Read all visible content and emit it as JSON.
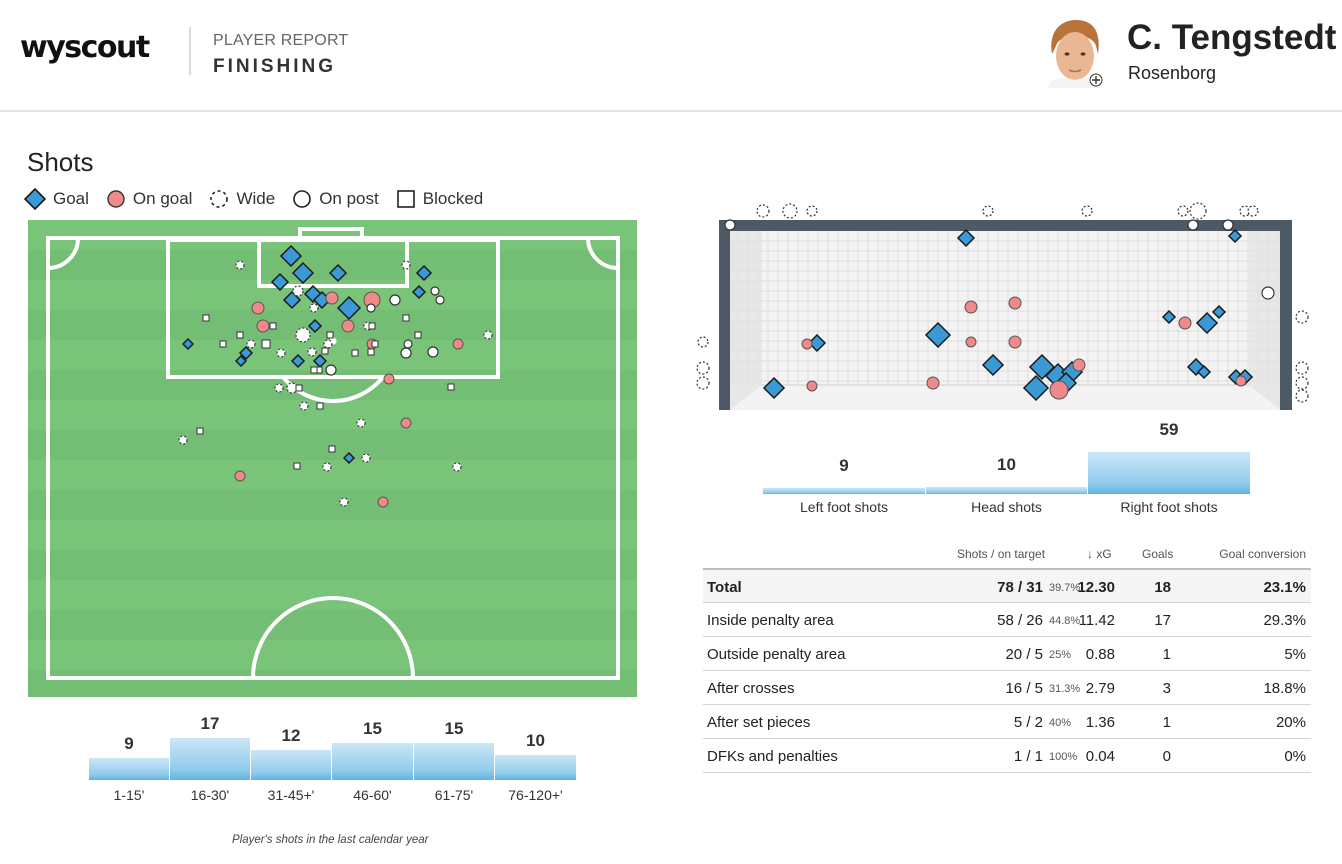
{
  "header": {
    "logo": "wyscout",
    "kicker": "PLAYER REPORT",
    "title": "FINISHING",
    "player_name": "C. Tengstedt",
    "club": "Rosenborg"
  },
  "section_title": "Shots",
  "legend": [
    {
      "icon": "goal-diamond-icon",
      "label": "Goal"
    },
    {
      "icon": "on-goal-circle-icon",
      "label": "On goal"
    },
    {
      "icon": "wide-dashed-circle-icon",
      "label": "Wide"
    },
    {
      "icon": "on-post-circle-icon",
      "label": "On post"
    },
    {
      "icon": "blocked-square-icon",
      "label": "Blocked"
    }
  ],
  "colors": {
    "goal": "#3a9ad6",
    "on_goal": "#f08a8a",
    "pitch": "#74bd74",
    "pitch_stripe": "#7ac47a",
    "goal_frame": "#4d5a66",
    "bar": "#90cbeb"
  },
  "time_bars": {
    "labels": [
      "1-15'",
      "16-30'",
      "31-45+'",
      "46-60'",
      "61-75'",
      "76-120+'"
    ],
    "values": [
      9,
      17,
      12,
      15,
      15,
      10
    ]
  },
  "footnote": "Player's shots in the last calendar year",
  "body_bars": {
    "labels": [
      "Left foot shots",
      "Head shots",
      "Right foot shots"
    ],
    "values": [
      9,
      10,
      59
    ]
  },
  "stats": {
    "headers": {
      "shots": "Shots / on target",
      "xg": "↓ xG",
      "goals": "Goals",
      "conversion": "Goal conversion"
    },
    "rows": [
      {
        "label": "Total",
        "shots": "78 / 31",
        "pct": "39.7%",
        "xg": "12.30",
        "goals": "18",
        "conversion": "23.1%"
      },
      {
        "label": "Inside penalty area",
        "shots": "58 / 26",
        "pct": "44.8%",
        "xg": "11.42",
        "goals": "17",
        "conversion": "29.3%"
      },
      {
        "label": "Outside penalty area",
        "shots": "20 / 5",
        "pct": "25%",
        "xg": "0.88",
        "goals": "1",
        "conversion": "5%"
      },
      {
        "label": "After crosses",
        "shots": "16 / 5",
        "pct": "31.3%",
        "xg": "2.79",
        "goals": "3",
        "conversion": "18.8%"
      },
      {
        "label": "After set pieces",
        "shots": "5 / 2",
        "pct": "40%",
        "xg": "1.36",
        "goals": "1",
        "conversion": "20%"
      },
      {
        "label": "DFKs and penalties",
        "shots": "1 / 1",
        "pct": "100%",
        "xg": "0.04",
        "goals": "0",
        "conversion": "0%"
      }
    ]
  }
}
